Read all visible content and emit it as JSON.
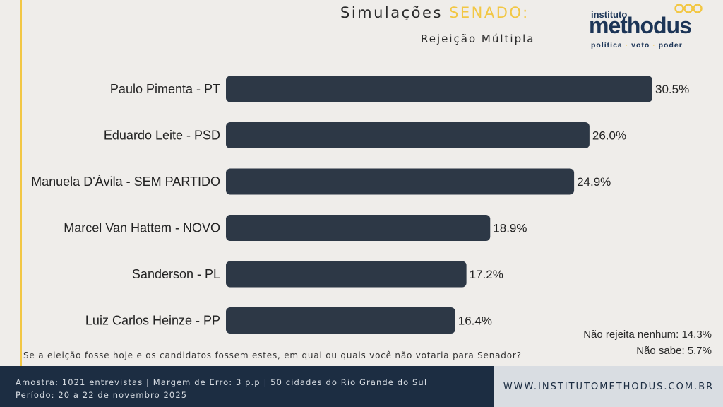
{
  "header": {
    "title_main": "Simulações ",
    "title_highlight": "SENADO:",
    "subtitle": "Rejeição Múltipla"
  },
  "logo": {
    "small": "instituto",
    "big": "methodus",
    "tag_1": "política",
    "tag_2": "voto",
    "tag_3": "poder",
    "sep": "·"
  },
  "chart_data": {
    "type": "bar",
    "orientation": "horizontal",
    "categories": [
      "Paulo Pimenta - PT",
      "Eduardo Leite - PSD",
      "Manuela D'Ávila - SEM PARTIDO",
      "Marcel Van Hattem - NOVO",
      "Sanderson - PL",
      "Luiz Carlos Heinze - PP"
    ],
    "values": [
      30.5,
      26.0,
      24.9,
      18.9,
      17.2,
      16.4
    ],
    "value_labels": [
      "30.5%",
      "26.0%",
      "24.9%",
      "18.9%",
      "17.2%",
      "16.4%"
    ],
    "bar_color": "#2d3846",
    "xlim": [
      0,
      30.5
    ]
  },
  "extra": {
    "nao_rejeita": "Não rejeita nenhum: 14.3%",
    "nao_sabe": "Não sabe: 5.7%"
  },
  "question": "Se a eleição fosse hoje e os candidatos fossem estes, em qual ou quais você não votaria para Senador?",
  "footer": {
    "line1": "Amostra: 1021 entrevistas | Margem de Erro: 3 p.p | 50 cidades do Rio Grande do Sul",
    "line2": "Período: 20 a 22 de novembro 2025",
    "website": "WWW.INSTITUTOMETHODUS.COM.BR"
  },
  "colors": {
    "accent": "#f2c744",
    "navy": "#1c2d42",
    "bar": "#2d3846"
  }
}
